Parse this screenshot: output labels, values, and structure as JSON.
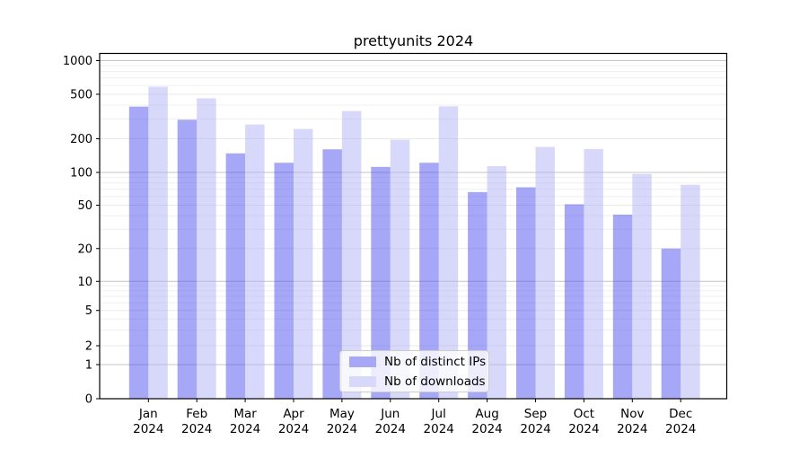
{
  "chart_data": {
    "type": "bar",
    "title": "prettyunits 2024",
    "categories": [
      "Jan",
      "Feb",
      "Mar",
      "Apr",
      "May",
      "Jun",
      "Jul",
      "Aug",
      "Sep",
      "Oct",
      "Nov",
      "Dec"
    ],
    "x_year": "2024",
    "series": [
      {
        "name": "Nb of distinct IPs",
        "color": "#4f4fef",
        "opacity": 0.5,
        "swatch": "#a7a7f7",
        "values": [
          388,
          296,
          148,
          122,
          161,
          112,
          122,
          66,
          73,
          51,
          41,
          20
        ]
      },
      {
        "name": "Nb of downloads",
        "color": "#b1b1f5",
        "opacity": 0.5,
        "swatch": "#d8d8fa",
        "values": [
          585,
          460,
          268,
          245,
          354,
          196,
          390,
          114,
          169,
          162,
          97,
          77
        ]
      }
    ],
    "y_ticks": [
      0,
      1,
      2,
      5,
      10,
      20,
      50,
      100,
      200,
      500,
      1000
    ],
    "y_minor_ticks": [
      3,
      4,
      6,
      7,
      8,
      9,
      30,
      40,
      60,
      70,
      80,
      90,
      300,
      400,
      600,
      700,
      800,
      900
    ],
    "yscale": "symlog",
    "ylim": [
      0,
      1200
    ],
    "grid": true,
    "legend_position": "lower center"
  }
}
